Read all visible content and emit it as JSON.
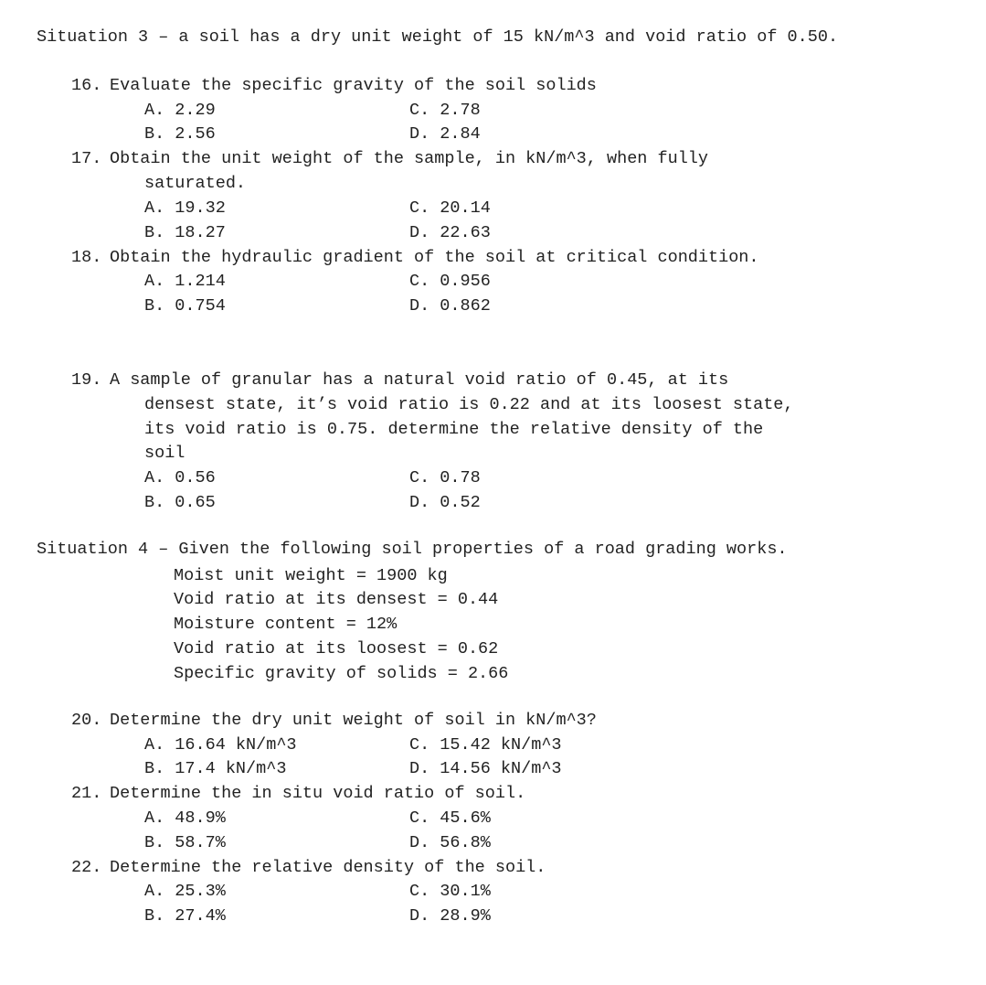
{
  "situation3": {
    "header": "Situation 3 – a soil has a dry unit weight of 15 kN/m^3 and void ratio of 0.50.",
    "q16": {
      "num": "16.",
      "text": "Evaluate the specific gravity of the soil solids",
      "A": "A. 2.29",
      "C": "C. 2.78",
      "B": "B. 2.56",
      "D": "D. 2.84"
    },
    "q17": {
      "num": "17.",
      "text_line1": "Obtain the unit weight of the sample, in kN/m^3, when fully",
      "text_line2": "saturated.",
      "A": "A. 19.32",
      "C": "C. 20.14",
      "B": "B. 18.27",
      "D": "D. 22.63"
    },
    "q18": {
      "num": "18.",
      "text": "Obtain the hydraulic gradient of the soil at critical condition.",
      "A": "A. 1.214",
      "C": "C. 0.956",
      "B": "B. 0.754",
      "D": "D. 0.862"
    },
    "q19": {
      "num": "19.",
      "text_line1": "A sample of granular has a natural void ratio of 0.45, at its",
      "text_line2": "densest state, it’s void ratio is 0.22 and at its loosest state,",
      "text_line3": "its void ratio is 0.75. determine the relative density of the",
      "text_line4": "soil",
      "A": "A. 0.56",
      "C": "C. 0.78",
      "B": "B. 0.65",
      "D": "D. 0.52"
    }
  },
  "situation4": {
    "header": "Situation 4 – Given the following soil properties of a road grading works.",
    "props": {
      "p1": "Moist unit weight = 1900 kg",
      "p2": "Void ratio at its densest = 0.44",
      "p3": "Moisture content = 12%",
      "p4": "Void ratio at its loosest = 0.62",
      "p5": "Specific gravity of solids = 2.66"
    },
    "q20": {
      "num": "20.",
      "text": "Determine the dry unit weight of soil in kN/m^3?",
      "A": "A. 16.64 kN/m^3",
      "C": "C. 15.42 kN/m^3",
      "B": "B. 17.4  kN/m^3",
      "D": "D. 14.56 kN/m^3"
    },
    "q21": {
      "num": "21.",
      "text": "Determine the in situ void ratio of soil.",
      "A": "A. 48.9%",
      "C": "C. 45.6%",
      "B": "B. 58.7%",
      "D": "D. 56.8%"
    },
    "q22": {
      "num": "22.",
      "text": "Determine the relative density of the soil.",
      "A": "A. 25.3%",
      "C": "C. 30.1%",
      "B": "B. 27.4%",
      "D": "D. 28.9%"
    }
  }
}
